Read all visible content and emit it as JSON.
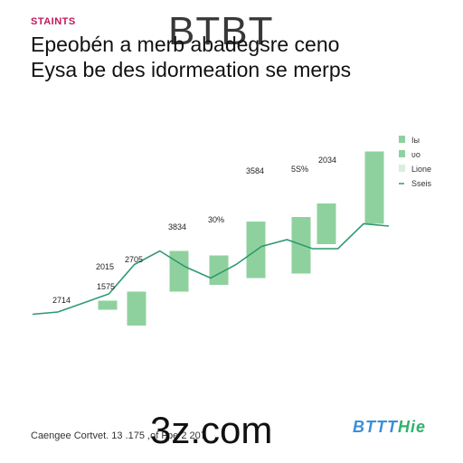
{
  "brand_tag": "STAINTS",
  "watermark_top": "BTBT",
  "headline": {
    "line1": "Epeobén a merb abadegsre ceno",
    "line2": "Eysa be des idormeation se merps"
  },
  "footer_note": "Caengee Cortvet. 13 .175 ,of Fpe 2 207",
  "watermark_bottom": "3z.com",
  "logo": {
    "text": "BTTT",
    "accent": "Hie"
  },
  "colors": {
    "bar": "#8fd19e",
    "line": "#2e9a6f",
    "bar_light": "#d8efe0",
    "brand": "#c2185b",
    "logo": "#3a8fd8"
  },
  "chart_data": {
    "type": "bar",
    "title": "",
    "xlabel": "",
    "ylabel": "",
    "ylim": [
      0,
      100
    ],
    "grid": false,
    "legend_position": "top-right",
    "bars": [
      {
        "low": 11,
        "high": 15
      },
      {
        "low": 4,
        "high": 19
      },
      {
        "low": 19,
        "high": 37
      },
      {
        "low": 22,
        "high": 35
      },
      {
        "low": 25,
        "high": 50
      },
      {
        "low": 27,
        "high": 52
      },
      {
        "low": 40,
        "high": 58
      },
      {
        "low": 49,
        "high": 81
      }
    ],
    "line": [
      9,
      10,
      14,
      18,
      31,
      37,
      30,
      25,
      31,
      39,
      42,
      38,
      38,
      49,
      48
    ],
    "labels": [
      "2714",
      "1575",
      "2015",
      "2705",
      "3834",
      "30%",
      "3584",
      "5S%",
      "2034"
    ],
    "legend": [
      {
        "label": "Iы",
        "kind": "bar"
      },
      {
        "label": "ʋo",
        "kind": "bar"
      },
      {
        "label": "Lione",
        "kind": "bar-light"
      },
      {
        "label": "Sseis",
        "kind": "line"
      }
    ]
  }
}
